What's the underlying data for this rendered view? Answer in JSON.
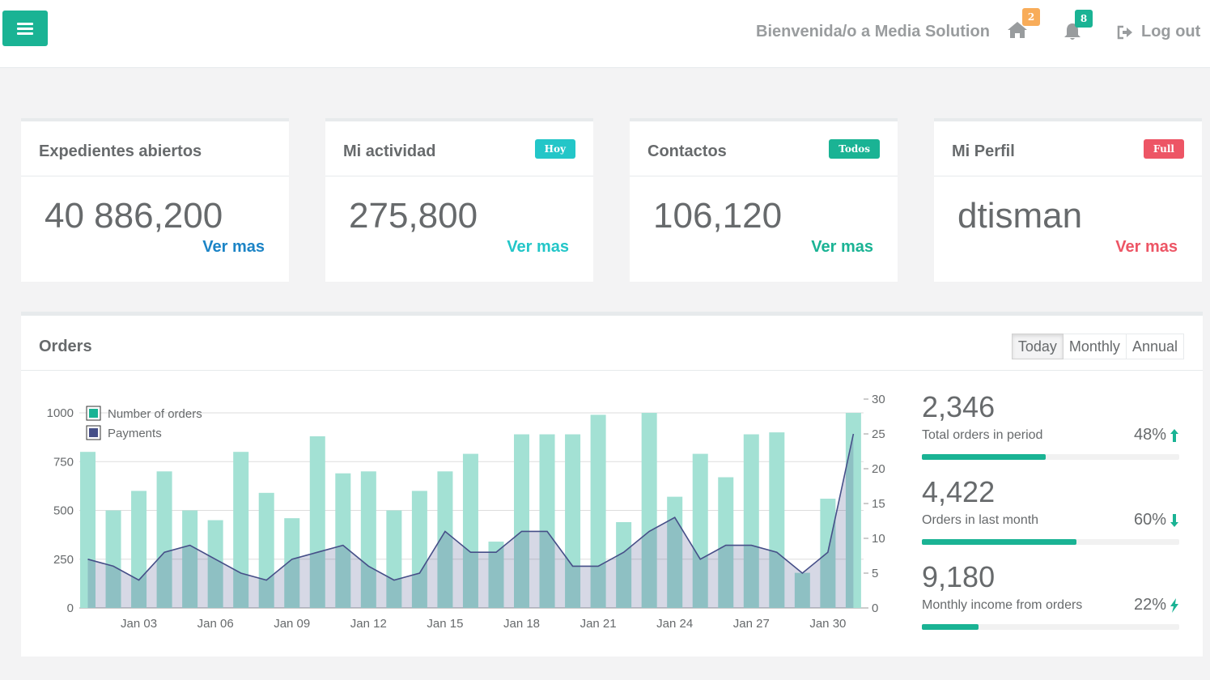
{
  "header": {
    "welcome": "Bienvenida/o a Media Solution",
    "home_badge": "2",
    "notifications_badge": "8",
    "logout_label": "Log out",
    "colors": {
      "primary": "#1ab394",
      "warning": "#f8ac59",
      "info": "#23c6c8",
      "danger": "#ed5565",
      "link": "#1c84c6"
    },
    "icons": {
      "menu": "bars-icon",
      "home": "home-icon",
      "notifications": "bell-icon",
      "logout": "sign-out-icon"
    }
  },
  "cards": [
    {
      "title": "Expedientes abiertos",
      "value": "40 886,200",
      "link": "Ver mas",
      "badge": "",
      "color": "#1c84c6"
    },
    {
      "title": "Mi actividad",
      "value": "275,800",
      "link": "Ver mas",
      "badge": "Hoy",
      "color": "#23c6c8"
    },
    {
      "title": "Contactos",
      "value": "106,120",
      "link": "Ver mas",
      "badge": "Todos",
      "color": "#1ab394"
    },
    {
      "title": "Mi Perfil",
      "value": "dtisman",
      "link": "Ver mas",
      "badge": "Full",
      "color": "#ed5565"
    }
  ],
  "orders": {
    "title": "Orders",
    "tabs": [
      "Today",
      "Monthly",
      "Annual"
    ],
    "active_tab": "Today",
    "stats": [
      {
        "value": "2,346",
        "label": "Total orders in period",
        "percent": "48%",
        "trend": "up",
        "progress": 0.48
      },
      {
        "value": "4,422",
        "label": "Orders in last month",
        "percent": "60%",
        "trend": "down",
        "progress": 0.6
      },
      {
        "value": "9,180",
        "label": "Monthly income from orders",
        "percent": "22%",
        "trend": "bolt",
        "progress": 0.22
      }
    ]
  },
  "chart_data": {
    "type": "bar",
    "x_ticks": [
      "Jan 03",
      "Jan 06",
      "Jan 09",
      "Jan 12",
      "Jan 15",
      "Jan 18",
      "Jan 21",
      "Jan 24",
      "Jan 27",
      "Jan 30"
    ],
    "legend": [
      "Number of orders",
      "Payments"
    ],
    "legend_position": "top-left",
    "y_left": {
      "ticks": [
        0,
        250,
        500,
        750,
        1000
      ],
      "max": 1000
    },
    "y_right": {
      "ticks": [
        0,
        5,
        10,
        15,
        20,
        25,
        30
      ],
      "max": 30
    },
    "grid": true,
    "series": [
      {
        "name": "Number of orders",
        "type": "bar",
        "axis": "left",
        "color": "#a3e1d4",
        "values": [
          800,
          500,
          600,
          700,
          500,
          450,
          800,
          590,
          460,
          880,
          690,
          700,
          500,
          600,
          700,
          790,
          340,
          890,
          890,
          890,
          990,
          440,
          1000,
          570,
          790,
          670,
          890,
          900,
          180,
          560,
          1000
        ]
      },
      {
        "name": "Payments",
        "type": "area",
        "axis": "right",
        "color": "#464f88",
        "values": [
          7,
          6,
          4,
          8,
          9,
          7,
          5,
          4,
          7,
          8,
          9,
          6,
          4,
          5,
          11,
          8,
          8,
          11,
          11,
          6,
          6,
          8,
          11,
          13,
          7,
          9,
          9,
          8,
          5,
          8,
          25
        ]
      }
    ]
  }
}
